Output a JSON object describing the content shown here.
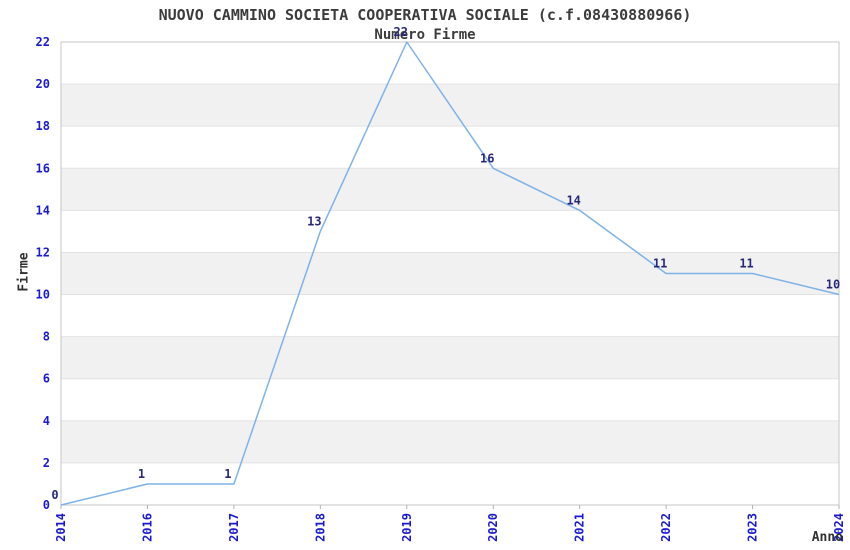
{
  "chart_data": {
    "type": "line",
    "title": "NUOVO CAMMINO SOCIETA COOPERATIVA SOCIALE (c.f.08430880966)",
    "subtitle": "Numero Firme",
    "xlabel": "Anno",
    "ylabel": "Firme",
    "categories": [
      "2014",
      "2016",
      "2017",
      "2018",
      "2019",
      "2020",
      "2021",
      "2022",
      "2023",
      "2024"
    ],
    "series": [
      {
        "name": "Numero Firme",
        "values": [
          0,
          1,
          1,
          13,
          22,
          16,
          14,
          11,
          11,
          10
        ]
      }
    ],
    "point_labels": [
      "0",
      "1",
      "1",
      "13",
      "22",
      "16",
      "14",
      "11",
      "11",
      "10"
    ],
    "ylim": [
      0,
      22
    ],
    "yticks": [
      0,
      2,
      4,
      6,
      8,
      10,
      12,
      14,
      16,
      18,
      20,
      22
    ],
    "grid": "horizontal alternating bands, gray on 2-4, 6-8, 10-12, 14-16, 18-20",
    "legend": "none",
    "marker": "none",
    "colors": {
      "line": "#7fb2e6",
      "tick_label": "#1a1ad2",
      "point_label": "#28287a",
      "band_fill": "#f1f1f1",
      "grid_line": "#e2e2e2",
      "plot_border": "#c6c6c6",
      "axis_tick": "#b0b0b0",
      "text": "#303030",
      "background": "#ffffff"
    }
  }
}
